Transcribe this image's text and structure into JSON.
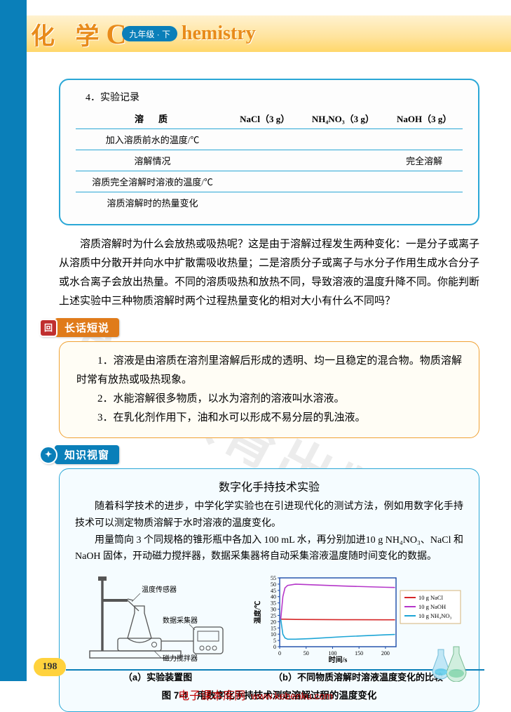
{
  "header": {
    "title_cn": "化 学",
    "grade": "九年级 · 下",
    "title_en": "hemistry",
    "c_letter": "C"
  },
  "table": {
    "caption": "4．实验记录",
    "headers": [
      "溶　质",
      "NaCl（3 g）",
      "NH₄NO₃（3 g）",
      "NaOH（3 g）"
    ],
    "rows": [
      [
        "加入溶质前水的温度/℃",
        "",
        "",
        ""
      ],
      [
        "溶解情况",
        "",
        "",
        "完全溶解"
      ],
      [
        "溶质完全溶解时溶液的温度/℃",
        "",
        "",
        ""
      ],
      [
        "溶质溶解时的热量变化",
        "",
        "",
        ""
      ]
    ]
  },
  "body_para": "溶质溶解时为什么会放热或吸热呢？这是由于溶解过程发生两种变化：一是分子或离子从溶质中分散开并向水中扩散需吸收热量；二是溶质分子或离子与水分子作用生成水合分子或水合离子会放出热量。不同的溶质吸热和放热不同，导致溶液的温度升降不同。你能判断上述实验中三种物质溶解时两个过程热量变化的相对大小有什么不同吗？",
  "summary": {
    "chip": "长话短说",
    "items": [
      "1．溶液是由溶质在溶剂里溶解后形成的透明、均一且稳定的混合物。物质溶解时常有放热或吸热现象。",
      "2．水能溶解很多物质，以水为溶剂的溶液叫水溶液。",
      "3．在乳化剂作用下，油和水可以形成不易分层的乳浊液。"
    ]
  },
  "knowledge": {
    "chip": "知识视窗",
    "title": "数字化手持技术实验",
    "p1": "随着科学技术的进步，中学化学实验也在引进现代化的测试方法，例如用数字化手持技术可以测定物质溶解于水时溶液的温度变化。",
    "p2": "用量筒向 3 个同规格的锥形瓶中各加入 100 mL 水，再分别加进10 g NH₄NO₃、NaCl 和 NaOH 固体，开动磁力搅拌器，数据采集器将自动采集溶液温度随时间变化的数据。",
    "cap_a": "（a）实验装置图",
    "cap_b": "（b）不同物质溶解时溶液温度变化的比较",
    "fig_caption": "图 7-4　用数字化手持技术测定溶解过程的温度变化",
    "chart": {
      "x_label": "时间/s",
      "y_label": "温度/℃",
      "x_ticks": [
        0,
        50,
        100,
        150,
        200
      ],
      "y_ticks": [
        0,
        5,
        10,
        15,
        20,
        25,
        30,
        35,
        40,
        45,
        50,
        55
      ],
      "xlim": [
        0,
        220
      ],
      "ylim": [
        0,
        55
      ],
      "series": [
        {
          "name": "10 g NaCl",
          "color": "#d62728",
          "data": [
            [
              2,
              22
            ],
            [
              5,
              22
            ],
            [
              10,
              22
            ],
            [
              30,
              21.8
            ],
            [
              60,
              21.7
            ],
            [
              120,
              21.6
            ],
            [
              200,
              21.5
            ],
            [
              218,
              21.5
            ]
          ]
        },
        {
          "name": "10 g NaOH",
          "color": "#b536c9",
          "data": [
            [
              2,
              22
            ],
            [
              6,
              40
            ],
            [
              10,
              47
            ],
            [
              15,
              49
            ],
            [
              30,
              50
            ],
            [
              60,
              49.5
            ],
            [
              120,
              48.5
            ],
            [
              200,
              47.5
            ],
            [
              218,
              47.3
            ]
          ]
        },
        {
          "name": "10 g NH₄NO₃",
          "color": "#1da5d6",
          "data": [
            [
              2,
              22
            ],
            [
              6,
              10
            ],
            [
              10,
              7
            ],
            [
              15,
              6
            ],
            [
              30,
              6
            ],
            [
              60,
              6.5
            ],
            [
              120,
              8
            ],
            [
              200,
              9.5
            ],
            [
              218,
              9.8
            ]
          ]
        }
      ],
      "legend_box": {
        "border": "#d4b37a",
        "bg": "#ffffff"
      },
      "axis_color": "#1a4aa8",
      "grid": false,
      "bg": "#ffffff",
      "line_width": 1.6
    },
    "apparatus_labels": [
      "温度传感器",
      "数据采集器",
      "磁力搅拌器"
    ]
  },
  "page_no": "198",
  "watermark": "广东教育出版社",
  "footer": {
    "name": "电子课本库网",
    "url": "www.kebenku.com"
  }
}
